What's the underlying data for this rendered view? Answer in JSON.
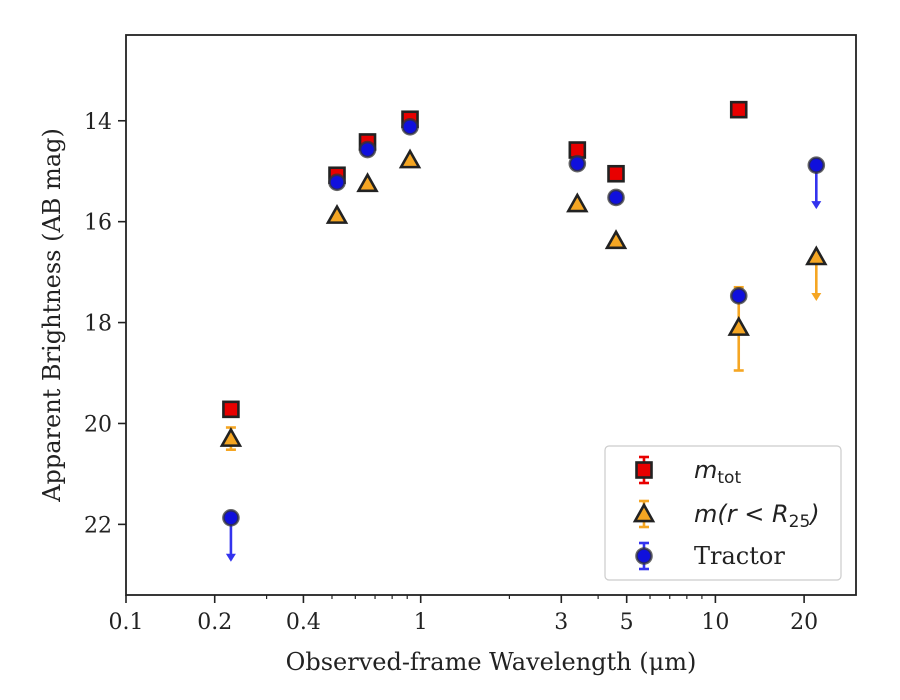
{
  "chart_data": {
    "type": "scatter",
    "xlabel": "Observed-frame Wavelength (μm)",
    "ylabel": "Apparent Brightness (AB mag)",
    "x_scale": "log",
    "xlim": [
      0.1,
      30
    ],
    "ylim": [
      23.4,
      12.3
    ],
    "y_inverted": true,
    "x_ticks": [
      0.1,
      0.2,
      0.4,
      1,
      3,
      5,
      10,
      20
    ],
    "x_tick_labels": [
      "0.1",
      "0.2",
      "0.4",
      "1",
      "3",
      "5",
      "10",
      "20"
    ],
    "y_ticks": [
      14,
      16,
      18,
      20,
      22
    ],
    "y_tick_labels": [
      "14",
      "16",
      "18",
      "20",
      "22"
    ],
    "grid": false,
    "legend_position": "lower-right",
    "series": [
      {
        "name": "m_tot",
        "legend_main": "m",
        "legend_sub": "tot",
        "marker": "square",
        "color": "#e80000",
        "error_color": "#e80000",
        "points": [
          {
            "x": 0.227,
            "y": 19.72
          },
          {
            "x": 0.52,
            "y": 15.08
          },
          {
            "x": 0.66,
            "y": 14.42
          },
          {
            "x": 0.92,
            "y": 13.97
          },
          {
            "x": 3.4,
            "y": 14.58
          },
          {
            "x": 4.6,
            "y": 15.05
          },
          {
            "x": 12.0,
            "y": 13.78
          }
        ]
      },
      {
        "name": "m(r < R_25)",
        "legend_main": "m(r < R",
        "legend_sub": "25",
        "legend_tail": ")",
        "marker": "triangle",
        "color": "#f5a623",
        "error_color": "#f5a623",
        "points": [
          {
            "x": 0.227,
            "y": 20.3,
            "err_low": 0.22,
            "err_high": 0.22
          },
          {
            "x": 0.52,
            "y": 15.88
          },
          {
            "x": 0.66,
            "y": 15.25
          },
          {
            "x": 0.92,
            "y": 14.78
          },
          {
            "x": 3.4,
            "y": 15.65
          },
          {
            "x": 4.6,
            "y": 16.38
          },
          {
            "x": 12.0,
            "y": 18.1,
            "err_low": 0.85,
            "err_high": 0.8
          },
          {
            "x": 22.0,
            "y": 16.7,
            "upper_limit": true
          }
        ]
      },
      {
        "name": "Tractor",
        "legend_main": "Tractor",
        "marker": "circle",
        "color": "#1010dd",
        "error_color": "#3333ee",
        "points": [
          {
            "x": 0.227,
            "y": 21.87,
            "upper_limit": true
          },
          {
            "x": 0.52,
            "y": 15.22
          },
          {
            "x": 0.66,
            "y": 14.57
          },
          {
            "x": 0.92,
            "y": 14.12
          },
          {
            "x": 3.4,
            "y": 14.85
          },
          {
            "x": 4.6,
            "y": 15.52
          },
          {
            "x": 12.0,
            "y": 17.47
          },
          {
            "x": 22.0,
            "y": 14.88,
            "upper_limit": true
          }
        ]
      }
    ]
  }
}
